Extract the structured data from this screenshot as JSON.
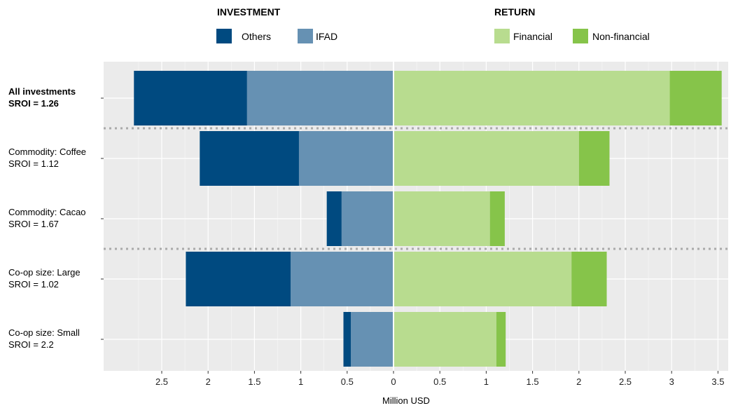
{
  "chart_data": {
    "type": "bar",
    "orientation": "horizontal-diverging",
    "xlabel": "Million USD",
    "x_ticks": [
      "2.5",
      "2",
      "1.5",
      "1",
      "0.5",
      "0",
      "0.5",
      "1",
      "1.5",
      "2",
      "2.5",
      "3",
      "3.5"
    ],
    "xlim": [
      -2.95,
      3.65
    ],
    "grid": true,
    "legend_position": "top",
    "legend_groups": [
      {
        "title": "INVESTMENT",
        "entries": [
          {
            "label": "Others",
            "color": "#004a80"
          },
          {
            "label": "IFAD",
            "color": "#6691b3"
          }
        ]
      },
      {
        "title": "RETURN",
        "entries": [
          {
            "label": "Financial",
            "color": "#b8dc8f"
          },
          {
            "label": "Non-financial",
            "color": "#86c44a"
          }
        ]
      }
    ],
    "categories": [
      {
        "line1": "All investments",
        "line2": "SROI = 1.26",
        "bold": true
      },
      {
        "line1": "Commodity: Coffee",
        "line2": "SROI = 1.12",
        "bold": false
      },
      {
        "line1": "Commodity: Cacao",
        "line2": "SROI = 1.67",
        "bold": false
      },
      {
        "line1": "Co-op size: Large",
        "line2": "SROI = 1.02",
        "bold": false
      },
      {
        "line1": "Co-op size: Small",
        "line2": "SROI = 2.2",
        "bold": false
      }
    ],
    "group_separators_after": [
      0,
      2
    ],
    "series": [
      {
        "name": "IFAD",
        "side": "investment",
        "color": "#6691b3",
        "values": [
          1.58,
          1.02,
          0.56,
          1.11,
          0.46
        ]
      },
      {
        "name": "Others",
        "side": "investment",
        "color": "#004a80",
        "values": [
          1.22,
          1.07,
          0.16,
          1.13,
          0.08
        ]
      },
      {
        "name": "Financial",
        "side": "return",
        "color": "#b8dc8f",
        "values": [
          2.98,
          2.0,
          1.04,
          1.92,
          1.11
        ]
      },
      {
        "name": "Non-financial",
        "side": "return",
        "color": "#86c44a",
        "values": [
          0.56,
          0.33,
          0.16,
          0.38,
          0.1
        ]
      }
    ]
  },
  "colors": {
    "panel_background": "#ebebeb",
    "grid": "#ffffff",
    "separator": "#aaaaaa"
  }
}
